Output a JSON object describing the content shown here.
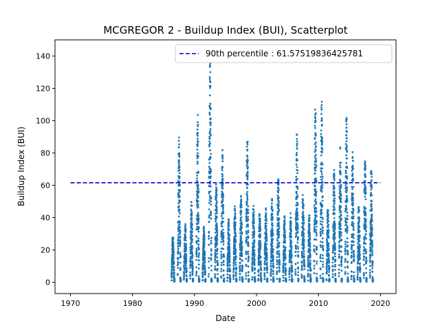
{
  "chart_data": {
    "type": "scatter",
    "title": "MCGREGOR 2 - Buildup Index (BUI), Scatterplot",
    "xlabel": "Date",
    "ylabel": "Buildup Index (BUI)",
    "xlim": [
      1967.5,
      2022.5
    ],
    "ylim": [
      -7,
      150
    ],
    "x_ticks": [
      1970,
      1980,
      1990,
      2000,
      2010,
      2020
    ],
    "x_tick_labels": [
      "1970",
      "1980",
      "1990",
      "2000",
      "2010",
      "2020"
    ],
    "y_ticks": [
      0,
      20,
      40,
      60,
      80,
      100,
      120,
      140
    ],
    "y_tick_labels": [
      "0",
      "20",
      "40",
      "60",
      "80",
      "100",
      "120",
      "140"
    ],
    "grid": false,
    "legend_position": "top-right",
    "point_color": "#1f77b4",
    "line_color": "#0000cc",
    "reference_line": {
      "label": "90th percentile : 61.57519836425781",
      "y": 61.57519836425781,
      "x_range": [
        1970,
        2020
      ],
      "style": "dashed"
    },
    "season_peaks": [
      {
        "year": 1986,
        "peak": 30
      },
      {
        "year": 1987,
        "peak": 91
      },
      {
        "year": 1988,
        "peak": 37
      },
      {
        "year": 1989,
        "peak": 51
      },
      {
        "year": 1990,
        "peak": 105
      },
      {
        "year": 1991,
        "peak": 35
      },
      {
        "year": 1992,
        "peak": 138
      },
      {
        "year": 1993,
        "peak": 62
      },
      {
        "year": 1994,
        "peak": 83
      },
      {
        "year": 1995,
        "peak": 40
      },
      {
        "year": 1996,
        "peak": 47
      },
      {
        "year": 1997,
        "peak": 55
      },
      {
        "year": 1998,
        "peak": 91
      },
      {
        "year": 1999,
        "peak": 49
      },
      {
        "year": 2000,
        "peak": 44
      },
      {
        "year": 2001,
        "peak": 46
      },
      {
        "year": 2002,
        "peak": 52
      },
      {
        "year": 2003,
        "peak": 66
      },
      {
        "year": 2004,
        "peak": 41
      },
      {
        "year": 2005,
        "peak": 43
      },
      {
        "year": 2006,
        "peak": 95
      },
      {
        "year": 2007,
        "peak": 58
      },
      {
        "year": 2008,
        "peak": 42
      },
      {
        "year": 2009,
        "peak": 112
      },
      {
        "year": 2010,
        "peak": 115
      },
      {
        "year": 2011,
        "peak": 47
      },
      {
        "year": 2012,
        "peak": 70
      },
      {
        "year": 2013,
        "peak": 86
      },
      {
        "year": 2014,
        "peak": 105
      },
      {
        "year": 2015,
        "peak": 85
      },
      {
        "year": 2016,
        "peak": 48
      },
      {
        "year": 2017,
        "peak": 80
      },
      {
        "year": 2018,
        "peak": 70
      }
    ]
  }
}
